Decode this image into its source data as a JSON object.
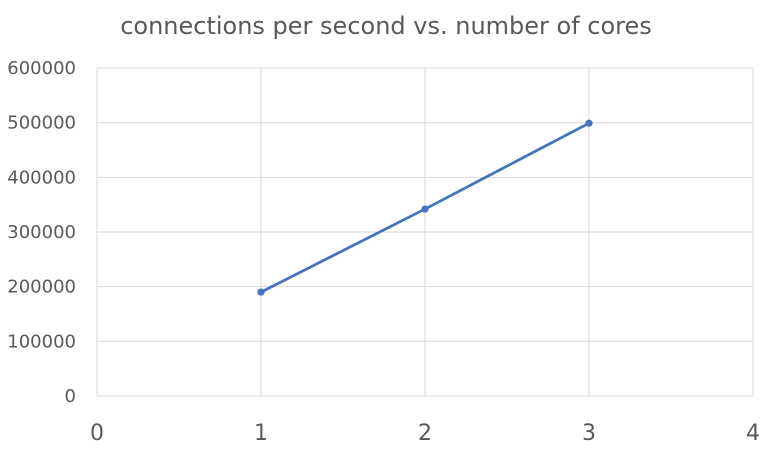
{
  "chart_data": {
    "type": "scatter",
    "title": "connections per second vs. number of cores",
    "xlabel": "",
    "ylabel": "",
    "xlim": [
      0,
      4
    ],
    "ylim": [
      0,
      600000
    ],
    "x_ticks": [
      "0",
      "1",
      "2",
      "3",
      "4"
    ],
    "y_ticks": [
      "0",
      "100000",
      "200000",
      "300000",
      "400000",
      "500000",
      "600000"
    ],
    "grid": true,
    "legend": "none",
    "series": [
      {
        "color": "#4472c4",
        "lines": true,
        "markers": true,
        "x": [
          1,
          2,
          3
        ],
        "y": [
          190000,
          342000,
          499000
        ]
      }
    ]
  }
}
